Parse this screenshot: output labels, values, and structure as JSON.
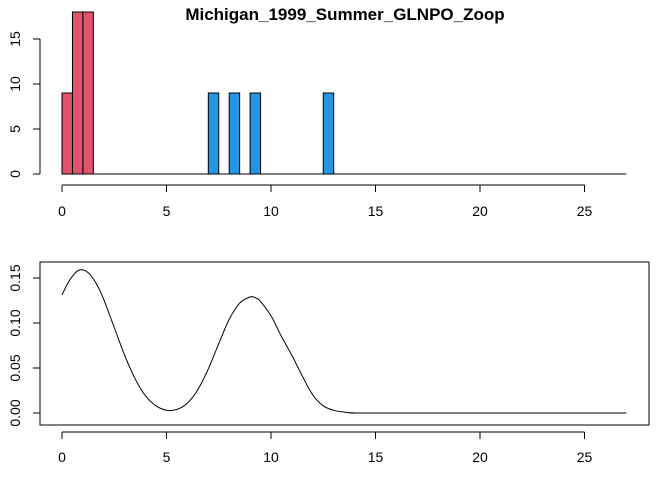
{
  "chart_data": [
    {
      "type": "bar",
      "title": "Michigan_1999_Summer_GLNPO_Zoop",
      "xlabel": "",
      "ylabel": "",
      "xlim": [
        0,
        27
      ],
      "ylim": [
        0,
        18
      ],
      "x_ticks": [
        "0",
        "5",
        "10",
        "15",
        "20",
        "25"
      ],
      "y_ticks": [
        "0",
        "5",
        "10",
        "15"
      ],
      "bin_width": 0.5,
      "bars": [
        {
          "x0": 0.0,
          "x1": 0.5,
          "value": 9,
          "color": "#DF536B"
        },
        {
          "x0": 0.5,
          "x1": 1.0,
          "value": 18,
          "color": "#DF536B"
        },
        {
          "x0": 1.0,
          "x1": 1.5,
          "value": 18,
          "color": "#DF536B"
        },
        {
          "x0": 7.0,
          "x1": 7.5,
          "value": 9,
          "color": "#2297E6"
        },
        {
          "x0": 8.0,
          "x1": 8.5,
          "value": 9,
          "color": "#2297E6"
        },
        {
          "x0": 9.0,
          "x1": 9.5,
          "value": 9,
          "color": "#2297E6"
        },
        {
          "x0": 12.5,
          "x1": 13.0,
          "value": 9,
          "color": "#2297E6"
        }
      ],
      "colors": {
        "group_1": "#DF536B",
        "group_2": "#2297E6"
      },
      "grid": false,
      "frame": false
    },
    {
      "type": "line",
      "title": "",
      "xlabel": "",
      "ylabel": "",
      "xlim": [
        0,
        27
      ],
      "ylim": [
        0,
        0.16
      ],
      "x_ticks": [
        "0",
        "5",
        "10",
        "15",
        "20",
        "25"
      ],
      "y_ticks": [
        "0.00",
        "0.05",
        "0.10",
        "0.15"
      ],
      "x": [
        0,
        0.25,
        0.5,
        0.75,
        1,
        1.25,
        1.5,
        1.75,
        2,
        2.5,
        3,
        3.5,
        4,
        4.5,
        5,
        5.5,
        6,
        6.5,
        7,
        7.5,
        8,
        8.5,
        9,
        9.25,
        9.5,
        10,
        10.5,
        11,
        11.5,
        12,
        12.5,
        13,
        13.5,
        14,
        15,
        27
      ],
      "y": [
        0.131,
        0.143,
        0.152,
        0.158,
        0.159,
        0.156,
        0.149,
        0.139,
        0.126,
        0.095,
        0.064,
        0.038,
        0.019,
        0.008,
        0.003,
        0.004,
        0.011,
        0.026,
        0.049,
        0.077,
        0.104,
        0.122,
        0.129,
        0.128,
        0.124,
        0.108,
        0.085,
        0.064,
        0.041,
        0.02,
        0.008,
        0.003,
        0.001,
        0,
        0,
        0
      ],
      "grid": false,
      "frame": true
    }
  ]
}
